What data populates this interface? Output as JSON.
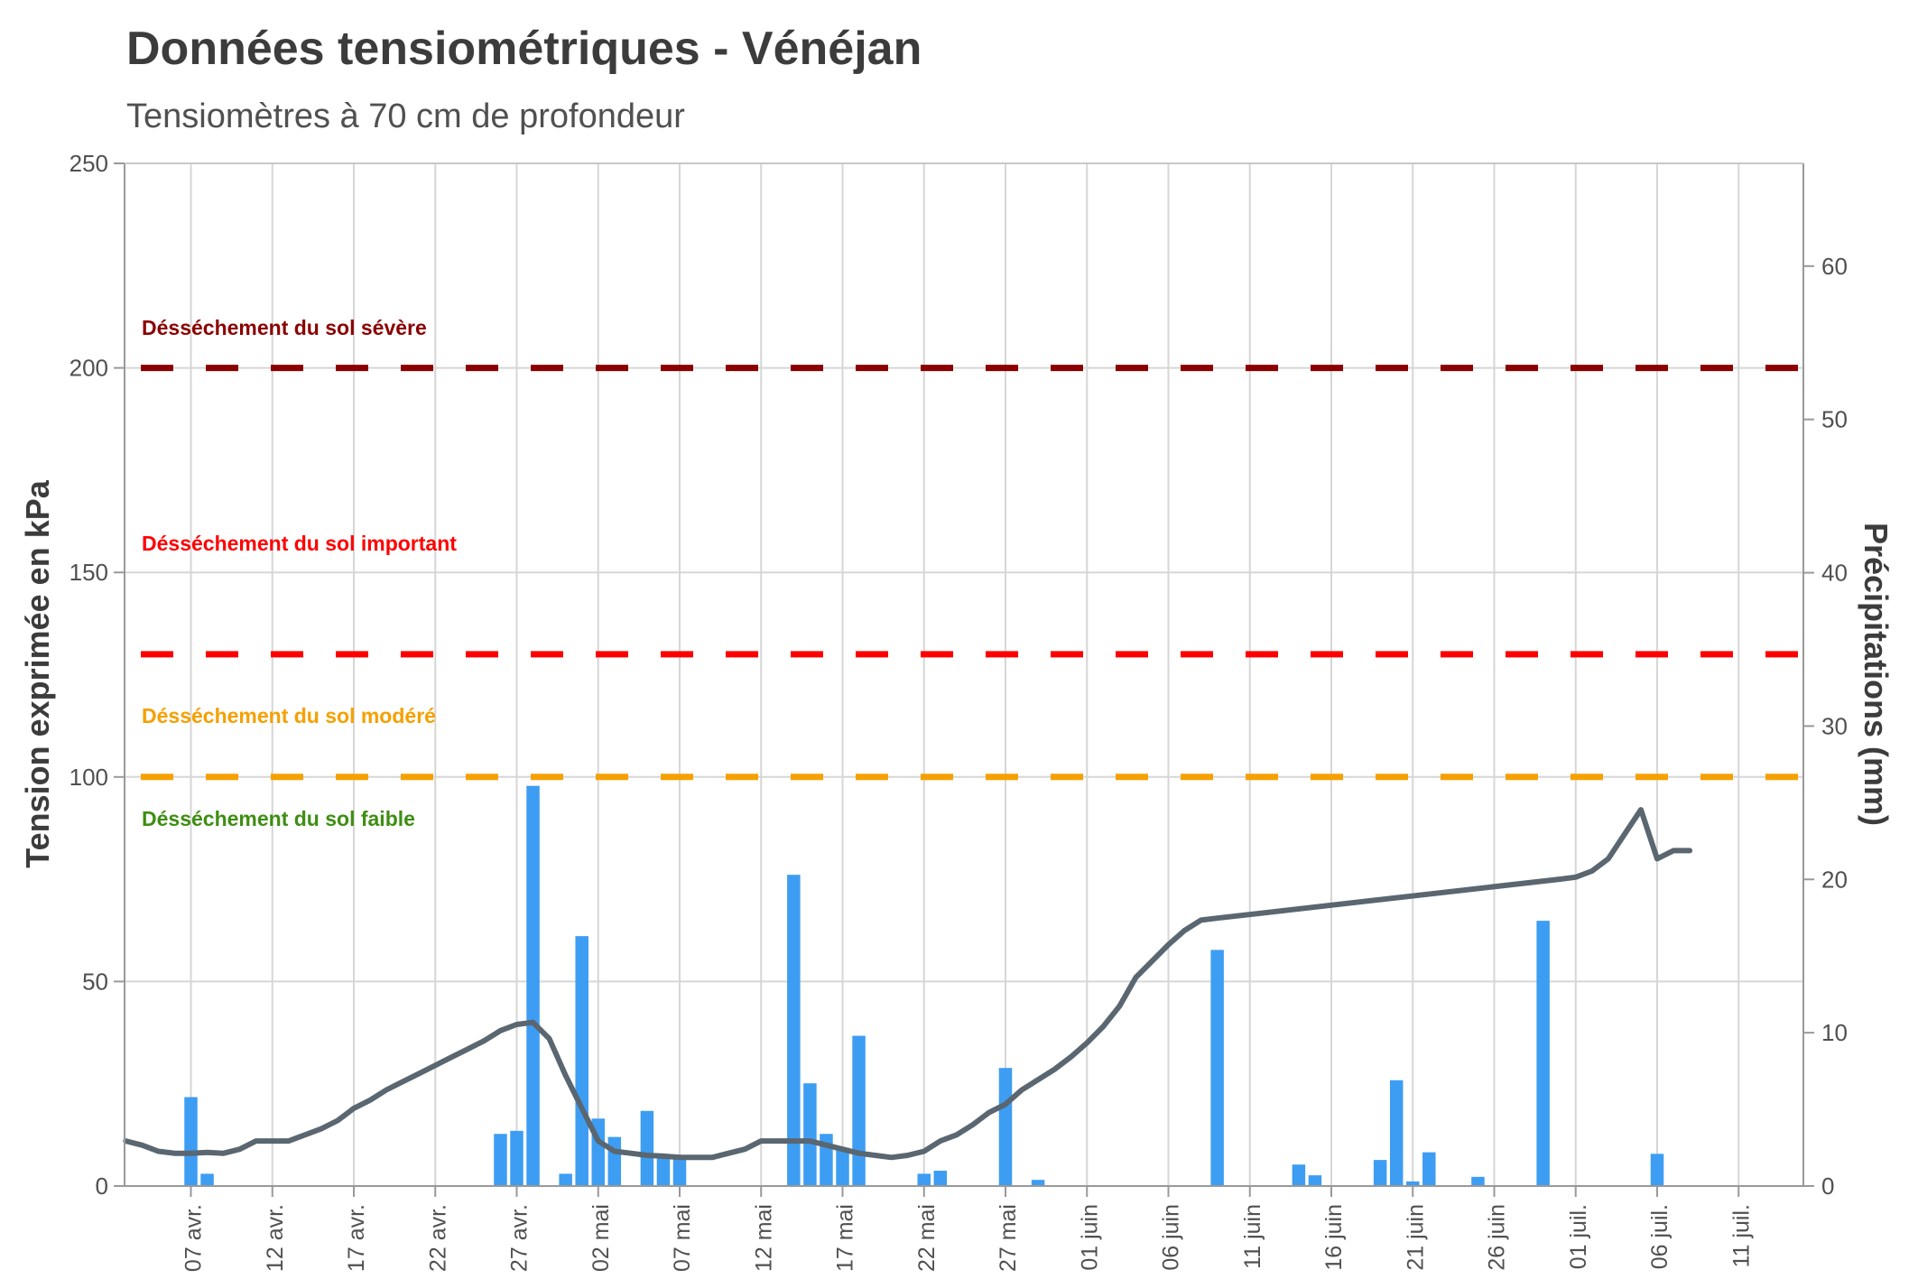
{
  "chart_data": {
    "type": "bar+line",
    "title": "Données tensiométriques - Vénéjan",
    "subtitle": "Tensiomètres à 70 cm de profondeur",
    "y_left_label": "Tension exprimée en kPa",
    "y_right_label": "Précipitations (mm)",
    "y_left_range": [
      0,
      250
    ],
    "y_left_ticks": [
      "0",
      "50",
      "100",
      "150",
      "200",
      "250"
    ],
    "y_right_range": [
      0,
      66.7
    ],
    "y_right_ticks": [
      "0",
      "10",
      "20",
      "30",
      "40",
      "50",
      "60"
    ],
    "x_ticks": [
      "07 avr.",
      "12 avr.",
      "17 avr.",
      "22 avr.",
      "27 avr.",
      "02 mai",
      "07 mai",
      "12 mai",
      "17 mai",
      "22 mai",
      "27 mai",
      "01 juin",
      "06 juin",
      "11 juin",
      "16 juin",
      "21 juin",
      "26 juin",
      "01 juil.",
      "06 juil.",
      "11 juil."
    ],
    "grid": true,
    "thresholds": [
      {
        "label": "Désséchement du sol sévère",
        "value": 200,
        "color": "#8b0000"
      },
      {
        "label": "Désséchement du sol important",
        "value": 130,
        "color": "#ff0000"
      },
      {
        "label": "Désséchement du sol modéré",
        "value": 100,
        "color": "#f5a000"
      },
      {
        "label": "Désséchement du sol faible",
        "value": null,
        "color": "#3e8e12"
      }
    ],
    "precipitation": {
      "color": "#3d9df3",
      "x": [
        "2022-04-07",
        "2022-04-08",
        "2022-04-26",
        "2022-04-27",
        "2022-04-28",
        "2022-04-30",
        "2022-05-01",
        "2022-05-02",
        "2022-05-03",
        "2022-05-05",
        "2022-05-06",
        "2022-05-07",
        "2022-05-14",
        "2022-05-15",
        "2022-05-16",
        "2022-05-17",
        "2022-05-18",
        "2022-05-22",
        "2022-05-23",
        "2022-05-27",
        "2022-05-29",
        "2022-06-09",
        "2022-06-14",
        "2022-06-15",
        "2022-06-19",
        "2022-06-20",
        "2022-06-21",
        "2022-06-22",
        "2022-06-25",
        "2022-06-29",
        "2022-07-06"
      ],
      "y": [
        5.8,
        0.8,
        3.4,
        3.6,
        26.1,
        0.8,
        16.3,
        4.4,
        3.2,
        4.9,
        1.9,
        1.8,
        20.3,
        6.7,
        3.4,
        2.5,
        9.8,
        0.8,
        1.0,
        7.7,
        0.4,
        15.4,
        1.4,
        0.7,
        1.7,
        6.9,
        0.3,
        2.2,
        0.6,
        17.3,
        2.1
      ]
    },
    "tension": {
      "color": "#5a6670",
      "x": [
        "2022-04-03",
        "2022-04-04",
        "2022-04-05",
        "2022-04-06",
        "2022-04-07",
        "2022-04-08",
        "2022-04-09",
        "2022-04-10",
        "2022-04-11",
        "2022-04-12",
        "2022-04-13",
        "2022-04-14",
        "2022-04-15",
        "2022-04-16",
        "2022-04-17",
        "2022-04-18",
        "2022-04-19",
        "2022-04-20",
        "2022-04-21",
        "2022-04-22",
        "2022-04-23",
        "2022-04-24",
        "2022-04-25",
        "2022-04-26",
        "2022-04-27",
        "2022-04-28",
        "2022-04-29",
        "2022-04-30",
        "2022-05-01",
        "2022-05-02",
        "2022-05-03",
        "2022-05-04",
        "2022-05-05",
        "2022-05-06",
        "2022-05-07",
        "2022-05-08",
        "2022-05-09",
        "2022-05-10",
        "2022-05-11",
        "2022-05-12",
        "2022-05-13",
        "2022-05-14",
        "2022-05-15",
        "2022-05-16",
        "2022-05-17",
        "2022-05-18",
        "2022-05-19",
        "2022-05-20",
        "2022-05-21",
        "2022-05-22",
        "2022-05-23",
        "2022-05-24",
        "2022-05-25",
        "2022-05-26",
        "2022-05-27",
        "2022-05-28",
        "2022-05-29",
        "2022-05-30",
        "2022-05-31",
        "2022-06-01",
        "2022-06-02",
        "2022-06-03",
        "2022-06-04",
        "2022-06-05",
        "2022-06-06",
        "2022-06-07",
        "2022-06-08",
        "2022-06-09",
        "2022-06-30",
        "2022-07-01",
        "2022-07-02",
        "2022-07-03",
        "2022-07-04",
        "2022-07-05",
        "2022-07-06",
        "2022-07-07",
        "2022-07-08"
      ],
      "y": [
        11,
        10,
        8.5,
        8,
        8,
        8.2,
        8,
        9,
        11,
        11,
        11,
        12.5,
        14,
        16,
        19,
        21,
        23.5,
        25.5,
        27.5,
        29.5,
        31.5,
        33.5,
        35.5,
        38,
        39.5,
        40,
        36,
        27,
        19,
        11,
        8.5,
        8,
        7.5,
        7.3,
        7,
        7,
        7,
        8,
        9,
        11,
        11,
        11,
        11,
        10,
        9,
        8,
        7.5,
        7,
        7.5,
        8.5,
        11,
        12.5,
        15,
        18,
        20,
        23.5,
        26,
        28.5,
        31.5,
        35,
        39,
        44,
        51,
        55,
        59,
        62.5,
        65,
        65.5,
        75,
        75.5,
        77,
        80,
        86,
        92,
        80,
        82,
        82
      ]
    }
  }
}
